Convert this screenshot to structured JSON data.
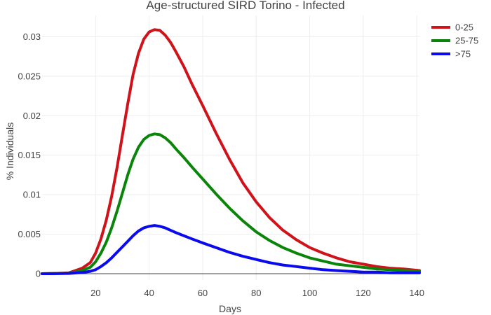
{
  "chart_data": {
    "type": "line",
    "title": "Age-structured SIRD Torino - Infected",
    "xlabel": "Days",
    "ylabel": "% Individuals",
    "xlim": [
      0,
      141
    ],
    "ylim": [
      -0.0008,
      0.0327
    ],
    "xticks": [
      20,
      40,
      60,
      80,
      100,
      120,
      140
    ],
    "xtick_labels": [
      "20",
      "40",
      "60",
      "80",
      "100",
      "120",
      "140"
    ],
    "yticks": [
      0,
      0.005,
      0.01,
      0.015,
      0.02,
      0.025,
      0.03
    ],
    "ytick_labels": [
      "0",
      "0.005",
      "0.01",
      "0.015",
      "0.02",
      "0.025",
      "0.03"
    ],
    "grid": true,
    "legend_position": "top-right",
    "x": [
      0,
      5,
      10,
      15,
      18,
      20,
      22,
      24,
      26,
      28,
      30,
      32,
      34,
      36,
      38,
      40,
      42,
      44,
      46,
      48,
      50,
      53,
      56,
      60,
      65,
      70,
      75,
      80,
      85,
      90,
      95,
      100,
      105,
      110,
      115,
      120,
      125,
      130,
      135,
      141
    ],
    "series": [
      {
        "name": "0-25",
        "color": "#d0121a",
        "values": [
          0,
          3e-05,
          0.0001,
          0.0007,
          0.0014,
          0.0026,
          0.0044,
          0.0068,
          0.0098,
          0.0134,
          0.0175,
          0.0215,
          0.0252,
          0.0279,
          0.0297,
          0.0306,
          0.0309,
          0.0308,
          0.0302,
          0.0293,
          0.0281,
          0.0262,
          0.024,
          0.0213,
          0.0178,
          0.0145,
          0.0115,
          0.0091,
          0.0071,
          0.0055,
          0.0043,
          0.0033,
          0.0026,
          0.002,
          0.0015,
          0.0012,
          0.0009,
          0.0007,
          0.0006,
          0.0004
        ]
      },
      {
        "name": "25-75",
        "color": "#0a850a",
        "values": [
          0,
          2e-05,
          5e-05,
          0.0004,
          0.0008,
          0.0015,
          0.0026,
          0.004,
          0.0058,
          0.0079,
          0.0102,
          0.0125,
          0.0145,
          0.016,
          0.017,
          0.0175,
          0.0177,
          0.0176,
          0.0172,
          0.0166,
          0.0158,
          0.0147,
          0.0135,
          0.012,
          0.0101,
          0.0083,
          0.0067,
          0.0053,
          0.0042,
          0.0033,
          0.0026,
          0.002,
          0.0016,
          0.0012,
          0.001,
          0.0008,
          0.0006,
          0.0005,
          0.0004,
          0.0003
        ]
      },
      {
        "name": ">75",
        "color": "#0a0aee",
        "values": [
          0,
          1e-05,
          3e-05,
          0.00015,
          0.0003,
          0.0005,
          0.0009,
          0.0014,
          0.002,
          0.0027,
          0.0034,
          0.0041,
          0.0048,
          0.0054,
          0.0058,
          0.006,
          0.0061,
          0.006,
          0.0058,
          0.0055,
          0.0052,
          0.0048,
          0.0044,
          0.0039,
          0.0033,
          0.0027,
          0.0022,
          0.0018,
          0.0014,
          0.0011,
          0.0009,
          0.0007,
          0.0005,
          0.0004,
          0.0003,
          0.0002,
          0.0002,
          0.0001,
          0.0001,
          0.0001
        ]
      }
    ]
  }
}
